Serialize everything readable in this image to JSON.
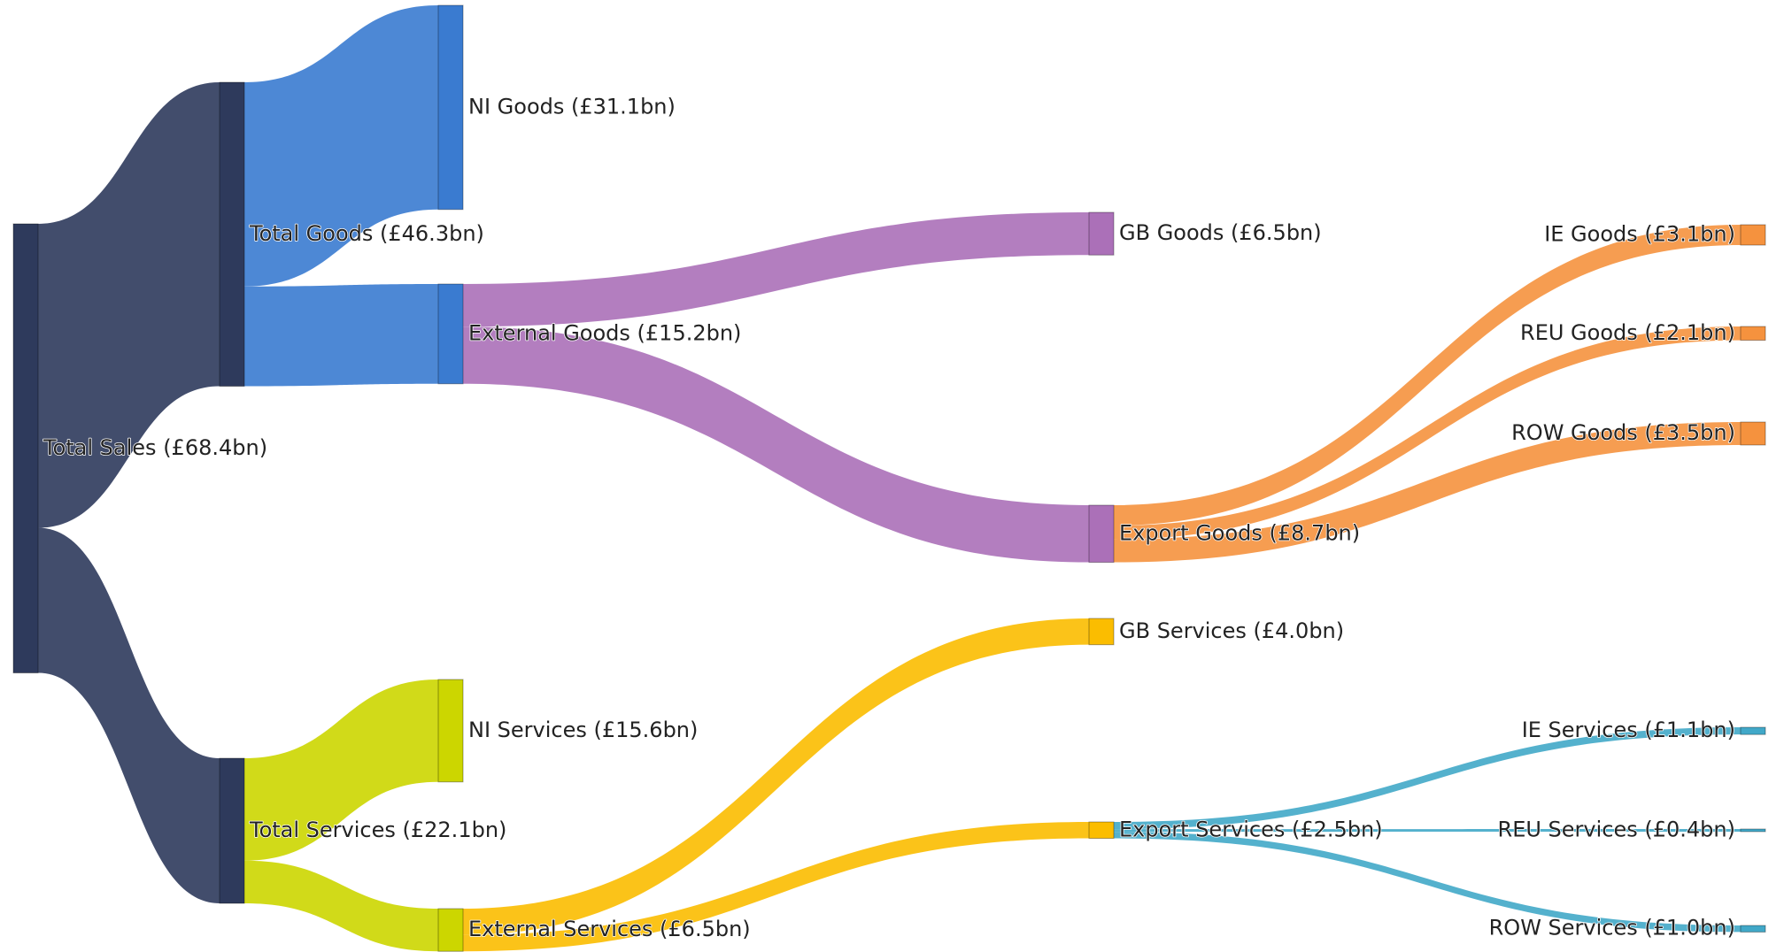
{
  "chart_data": {
    "type": "sankey",
    "nodes": [
      {
        "label": "Total Sales (£68.4bn)",
        "color": "#2e3a5c"
      },
      {
        "label": "Total Goods (£46.3bn)",
        "color": "#2e3a5c"
      },
      {
        "label": "Total Services (£22.1bn)",
        "color": "#2e3a5c"
      },
      {
        "label": "NI Goods (£31.1bn)",
        "color": "#3a7bd0"
      },
      {
        "label": "External Goods (£15.2bn)",
        "color": "#3a7bd0"
      },
      {
        "label": "NI Services (£15.6bn)",
        "color": "#ccd600"
      },
      {
        "label": "External Services (£6.5bn)",
        "color": "#ccd600"
      },
      {
        "label": "GB Goods (£6.5bn)",
        "color": "#ab70b8"
      },
      {
        "label": "Export Goods (£8.7bn)",
        "color": "#ab70b8"
      },
      {
        "label": "GB Services (£4.0bn)",
        "color": "#fbbd00"
      },
      {
        "label": "Export Services (£2.5bn)",
        "color": "#fbbd00"
      },
      {
        "label": "IE Goods (£3.1bn)",
        "color": "#f5923e"
      },
      {
        "label": "REU Goods (£2.1bn)",
        "color": "#f5923e"
      },
      {
        "label": "ROW Goods (£3.5bn)",
        "color": "#f5923e"
      },
      {
        "label": "IE Services (£1.1bn)",
        "color": "#41a8c8"
      },
      {
        "label": "REU Services (£0.4bn)",
        "color": "#41a8c8"
      },
      {
        "label": "ROW Services (£1.0bn)",
        "color": "#41a8c8"
      }
    ],
    "links": [
      {
        "source": 0,
        "target": 1,
        "value": 46.3
      },
      {
        "source": 0,
        "target": 2,
        "value": 22.1
      },
      {
        "source": 1,
        "target": 3,
        "value": 31.1
      },
      {
        "source": 1,
        "target": 4,
        "value": 15.2
      },
      {
        "source": 2,
        "target": 5,
        "value": 15.6
      },
      {
        "source": 2,
        "target": 6,
        "value": 6.5
      },
      {
        "source": 4,
        "target": 7,
        "value": 6.5
      },
      {
        "source": 4,
        "target": 8,
        "value": 8.7
      },
      {
        "source": 6,
        "target": 9,
        "value": 4.0
      },
      {
        "source": 6,
        "target": 10,
        "value": 2.5
      },
      {
        "source": 8,
        "target": 11,
        "value": 3.1
      },
      {
        "source": 8,
        "target": 12,
        "value": 2.1
      },
      {
        "source": 8,
        "target": 13,
        "value": 3.5
      },
      {
        "source": 10,
        "target": 14,
        "value": 1.1
      },
      {
        "source": 10,
        "target": 15,
        "value": 0.4
      },
      {
        "source": 10,
        "target": 16,
        "value": 1.0
      }
    ]
  }
}
